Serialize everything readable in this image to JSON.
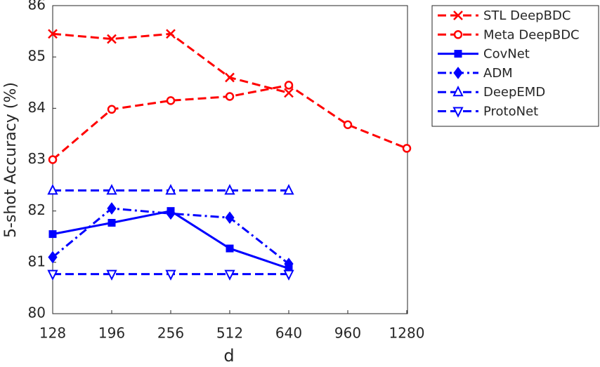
{
  "chart_data": {
    "type": "line",
    "x_label": "d",
    "y_label": "5-shot Accuracy (%)",
    "categories": [
      "128",
      "196",
      "256",
      "512",
      "640",
      "960",
      "1280"
    ],
    "ylim": [
      80,
      86
    ],
    "yticks": [
      80,
      81,
      82,
      83,
      84,
      85,
      86
    ],
    "grid": false,
    "legend": "outside-right",
    "series": [
      {
        "name": "STL DeepBDC",
        "color": "#ff0000",
        "line_style": "dashed",
        "marker": "x",
        "values": [
          85.45,
          85.35,
          85.45,
          84.6,
          84.3,
          null,
          null
        ]
      },
      {
        "name": "Meta DeepBDC",
        "color": "#ff0000",
        "line_style": "dashed",
        "marker": "o",
        "values": [
          83.0,
          83.98,
          84.15,
          84.23,
          84.45,
          83.68,
          83.22
        ]
      },
      {
        "name": "CovNet",
        "color": "#0000ff",
        "line_style": "solid",
        "marker": "s",
        "values": [
          81.55,
          81.77,
          82.0,
          81.27,
          80.88,
          null,
          null
        ]
      },
      {
        "name": "ADM",
        "color": "#0000ff",
        "line_style": "dashdot",
        "marker": "d",
        "values": [
          81.1,
          82.05,
          81.95,
          81.87,
          80.97,
          null,
          null
        ]
      },
      {
        "name": "DeepEMD",
        "color": "#0000ff",
        "line_style": "dashed",
        "marker": "^",
        "values": [
          82.4,
          82.4,
          82.4,
          82.4,
          82.4,
          null,
          null
        ]
      },
      {
        "name": "ProtoNet",
        "color": "#0000ff",
        "line_style": "dashed",
        "marker": "v",
        "values": [
          80.77,
          80.77,
          80.77,
          80.77,
          80.77,
          null,
          null
        ]
      }
    ]
  }
}
